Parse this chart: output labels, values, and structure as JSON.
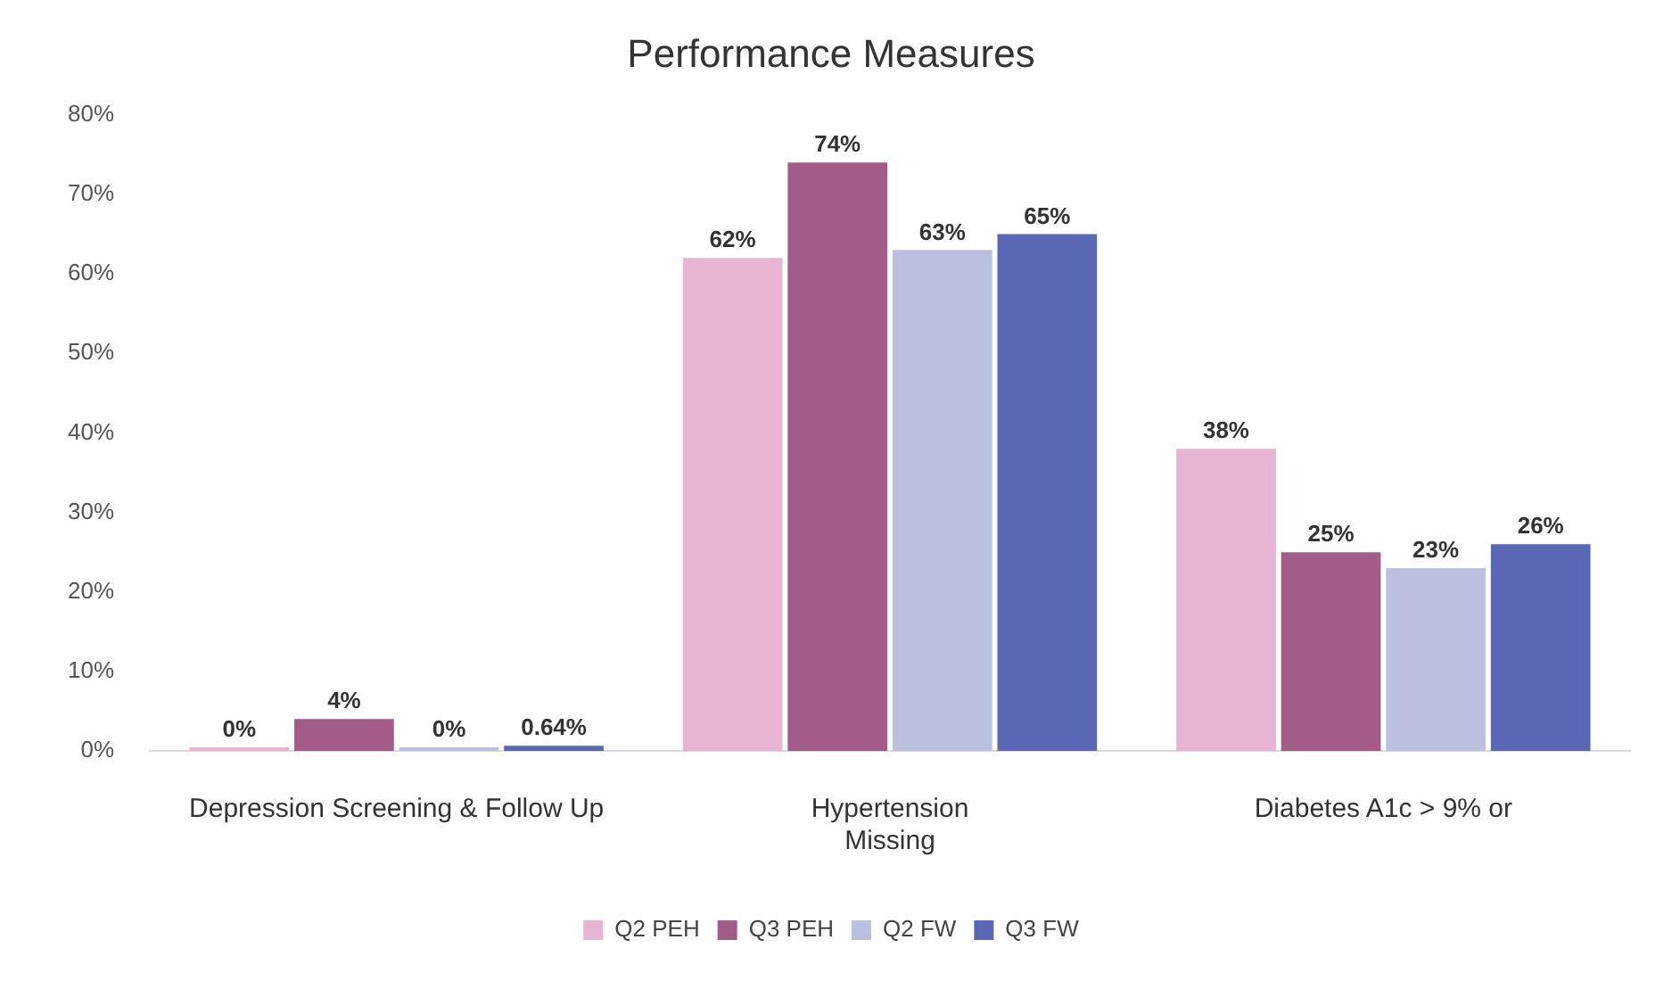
{
  "chart_data": {
    "type": "bar",
    "title": "Performance Measures",
    "categories": [
      "Depression Screening & Follow Up",
      "Hypertension\nMissing",
      "Diabetes A1c > 9% or"
    ],
    "series": [
      {
        "name": "Q2 PEH",
        "color": "#e8b4d4",
        "values": [
          0,
          62,
          38
        ],
        "value_labels": [
          "0%",
          "62%",
          "38%"
        ]
      },
      {
        "name": "Q3 PEH",
        "color": "#a35c88",
        "values": [
          4,
          74,
          25
        ],
        "value_labels": [
          "4%",
          "74%",
          "25%"
        ]
      },
      {
        "name": "Q2 FW",
        "color": "#bcc0e0",
        "values": [
          0,
          63,
          23
        ],
        "value_labels": [
          "0%",
          "63%",
          "23%"
        ]
      },
      {
        "name": "Q3 FW",
        "color": "#5a67b4",
        "values": [
          0.64,
          65,
          26
        ],
        "value_labels": [
          "0.64%",
          "65%",
          "26%"
        ]
      }
    ],
    "ylim": [
      0,
      80
    ],
    "yticks": [
      {
        "value": 0,
        "label": "0%"
      },
      {
        "value": 10,
        "label": "10%"
      },
      {
        "value": 20,
        "label": "20%"
      },
      {
        "value": 30,
        "label": "30%"
      },
      {
        "value": 40,
        "label": "40%"
      },
      {
        "value": 50,
        "label": "50%"
      },
      {
        "value": 60,
        "label": "60%"
      },
      {
        "value": 70,
        "label": "70%"
      },
      {
        "value": 80,
        "label": "80%"
      }
    ],
    "grid": false,
    "legend": "bottom"
  }
}
